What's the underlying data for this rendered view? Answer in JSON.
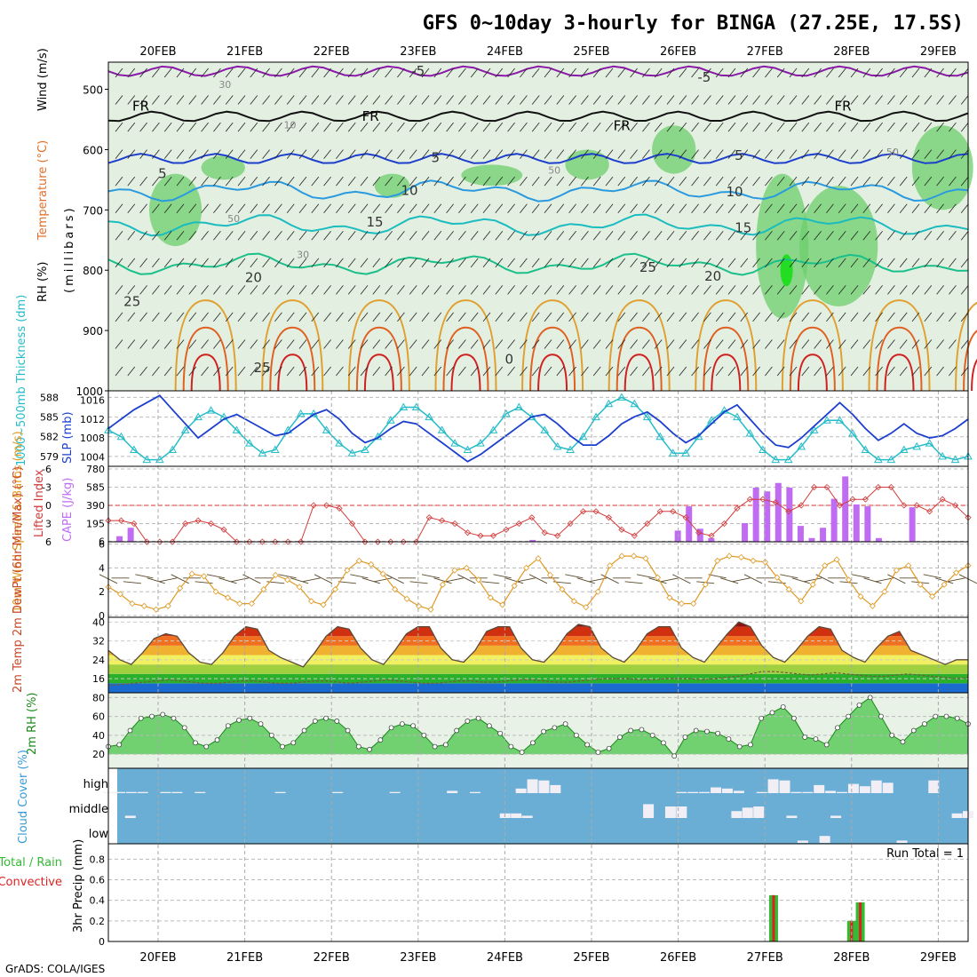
{
  "title": "GFS 0~10day 3-hourly for BINGA (27.25E, 17.5S)",
  "footer": "GrADS: COLA/IGES",
  "dates": [
    "20FEB",
    "21FEB",
    "22FEB",
    "23FEB",
    "24FEB",
    "25FEB",
    "26FEB",
    "27FEB",
    "28FEB",
    "29FEB"
  ],
  "colors": {
    "rh_light": "#e3efe0",
    "rh_mid": "#c2d3c0",
    "rh_green": "#6ccf6c",
    "rh_bright": "#22dd22",
    "cyan_series": "#26bcc8",
    "blue_series": "#1d3fce",
    "lifted": "#d23a3a",
    "cape": "#bf6cf2",
    "wind": "#e09a26",
    "temp_line": "#5a4a3a",
    "rh_line": "#1a8a1a",
    "sky": "#6aaed6",
    "cloud": "#f2eef5",
    "precip_green": "#33bb33",
    "precip_red": "#dd2222"
  },
  "chart_data": [
    {
      "type": "heatmap",
      "panel": "upper-air",
      "ylabel_left_parts": [
        "RH (%)",
        "Temperature (°C)",
        "Wind (m/s)"
      ],
      "ylabel": "(millibars)",
      "yticks": [
        500,
        600,
        700,
        800,
        900,
        1000
      ],
      "ylim": [
        1000,
        455
      ],
      "temperature_contour_labels": [
        "-5",
        "-5",
        "FR",
        "FR",
        "FR",
        "FR",
        "5",
        "5",
        "5",
        "10",
        "10",
        "15",
        "15",
        "20",
        "20",
        "25",
        "25",
        "25",
        "0"
      ],
      "rh_contour_labels": [
        "30",
        "10",
        "50",
        "50",
        "30",
        "50"
      ]
    },
    {
      "type": "line",
      "panel": "thickness-slp",
      "ylabel_left": "1000~500mb Thickness (dm)",
      "ylabel_right": "SLP (mb)",
      "yticks_left": [
        579,
        582,
        585,
        588
      ],
      "yticks_right": [
        1004,
        1008,
        1012,
        1016
      ],
      "series": [
        {
          "name": "Thickness",
          "axis": "left",
          "values": [
            583,
            582,
            580,
            578.5,
            578.5,
            580,
            583,
            585,
            586,
            585,
            583,
            581,
            579.5,
            580,
            583,
            585.5,
            585.5,
            583,
            581,
            579.5,
            580,
            582,
            584.5,
            586.5,
            586.5,
            585,
            583,
            581,
            580,
            581,
            583,
            585.5,
            586.5,
            585,
            583,
            580.5,
            580,
            582,
            585,
            587,
            588,
            587,
            585,
            582,
            579.5,
            579.5,
            582,
            584.5,
            586,
            585,
            582.5,
            580,
            578.5,
            578.5,
            580.5,
            583,
            584.5,
            584.5,
            582.5,
            580,
            578.5,
            578.5,
            580,
            580.5,
            581,
            579,
            578.5,
            579
          ]
        },
        {
          "name": "SLP",
          "axis": "right",
          "values": [
            1010,
            1012,
            1014,
            1015.5,
            1017,
            1014,
            1011,
            1008,
            1010,
            1012,
            1013,
            1011.5,
            1010,
            1008.5,
            1009,
            1011,
            1013,
            1014,
            1012,
            1009,
            1007,
            1008,
            1010,
            1011.5,
            1011,
            1009,
            1007,
            1005,
            1003,
            1004.5,
            1006.5,
            1008.5,
            1010.5,
            1012.5,
            1013,
            1011,
            1008.5,
            1006.5,
            1006.5,
            1008.5,
            1011,
            1012.5,
            1013.5,
            1011.5,
            1009,
            1007,
            1008.5,
            1011,
            1013.5,
            1015,
            1012,
            1009,
            1006.5,
            1006,
            1008,
            1010.5,
            1013,
            1015.5,
            1013,
            1010,
            1007.5,
            1009,
            1011,
            1009,
            1008,
            1008.5,
            1010,
            1012
          ]
        }
      ]
    },
    {
      "type": "bar",
      "panel": "lifted-cape",
      "ylabel_left": "Lifted Index",
      "ylabel_right": "CAPE (J/kg)",
      "yticks_left": [
        6,
        3,
        0,
        -3,
        -6
      ],
      "yticks_right": [
        6,
        195,
        390,
        585,
        780
      ],
      "series": [
        {
          "name": "Lifted Index",
          "values": [
            2.5,
            2.5,
            3,
            6,
            6,
            6,
            3,
            2.5,
            3,
            4,
            6,
            6,
            6,
            6,
            6,
            6,
            0,
            0,
            0.5,
            3,
            6,
            6,
            6,
            6,
            6,
            2,
            2.5,
            3,
            4.5,
            5,
            5,
            4,
            3,
            2,
            4.5,
            5,
            3,
            1,
            1,
            2,
            4,
            5,
            3,
            1,
            1,
            2,
            4.5,
            5,
            3,
            0.5,
            -1,
            -1,
            -0.5,
            1,
            0,
            -3,
            -3,
            0,
            -1,
            -1,
            -3,
            -3,
            0,
            0,
            1,
            -1,
            0,
            2
          ]
        },
        {
          "name": "CAPE",
          "values": [
            0,
            60,
            150,
            0,
            0,
            0,
            0,
            0,
            0,
            0,
            0,
            0,
            0,
            0,
            0,
            0,
            0,
            0,
            0,
            0,
            0,
            0,
            0,
            0,
            0,
            0,
            0,
            0,
            0,
            0,
            0,
            0,
            0,
            0,
            0,
            0,
            0,
            0,
            20,
            0,
            0,
            0,
            0,
            0,
            0,
            0,
            0,
            0,
            0,
            0,
            0,
            120,
            380,
            140,
            40,
            0,
            0,
            200,
            580,
            540,
            630,
            580,
            170,
            40,
            150,
            460,
            700,
            400,
            380,
            40,
            0,
            0,
            370,
            0,
            0,
            0,
            0,
            0
          ]
        }
      ]
    },
    {
      "type": "line",
      "panel": "wind",
      "ylabel": "10m Wind Speed & Barbs (m/s)",
      "yticks": [
        0,
        2,
        4,
        6
      ],
      "values": [
        2.4,
        1.8,
        1.0,
        0.8,
        0.5,
        0.8,
        2.3,
        3.5,
        3.3,
        2.0,
        1.5,
        1.0,
        1.0,
        2.2,
        3.4,
        3.0,
        2.4,
        1.2,
        0.9,
        2.2,
        3.8,
        4.6,
        4.3,
        3.5,
        2.2,
        1.4,
        0.8,
        0.5,
        2.6,
        3.8,
        4.0,
        3.0,
        1.5,
        0.9,
        2.5,
        4.0,
        4.8,
        3.4,
        2.2,
        1.2,
        0.7,
        2.0,
        4.2,
        5.0,
        5.0,
        4.8,
        3.2,
        1.5,
        1.0,
        1.0,
        2.6,
        4.6,
        5.0,
        4.9,
        4.6,
        4.5,
        3.2,
        2.2,
        1.2,
        2.6,
        4.2,
        4.7,
        3.0,
        1.6,
        0.8,
        2.0,
        3.8,
        4.2,
        2.6,
        1.6,
        2.6,
        3.6,
        4.2
      ]
    },
    {
      "type": "area",
      "panel": "temperature",
      "ylabel": "2m Temp 2m DewPt (6hr Min/Max) (°C)",
      "yticks": [
        16,
        24,
        32,
        40
      ],
      "series": [
        {
          "name": "2m Temp",
          "values": [
            28,
            24,
            22,
            27,
            33,
            35,
            34,
            27,
            23,
            22,
            27,
            34,
            38,
            37,
            28,
            25,
            23,
            21,
            27,
            34,
            38,
            37,
            29,
            24,
            22,
            28,
            35,
            38,
            38,
            29,
            24,
            23,
            28,
            36,
            38,
            38,
            29,
            24,
            23,
            28,
            35,
            39,
            38,
            29,
            25,
            23,
            28,
            35,
            38,
            38,
            29,
            25,
            23,
            29,
            35,
            40,
            38,
            30,
            25,
            23,
            28,
            34,
            38,
            37,
            28,
            25,
            23,
            29,
            34,
            36,
            28,
            26,
            24,
            22,
            24,
            24
          ]
        },
        {
          "name": "2m DewPt",
          "values": [
            13,
            13.5,
            14,
            14.5,
            15,
            15.5,
            15,
            14.5,
            14,
            14,
            14.5,
            15,
            15,
            14.5,
            14,
            14,
            14.5,
            15,
            15,
            14.5,
            14,
            14.5,
            15,
            15.5,
            15,
            14.5,
            14,
            14,
            14.5,
            15,
            15,
            14.5,
            14.5,
            15,
            15.5,
            15.5,
            15,
            14.5,
            14.5,
            15,
            15.5,
            16,
            16,
            16,
            15.5,
            15.5,
            16,
            16,
            16,
            15.5,
            16,
            16.5,
            17,
            18,
            19,
            19,
            18.5,
            18,
            17.5,
            18,
            18.5,
            18,
            17.5,
            17,
            17,
            17.5,
            18,
            17.5,
            17,
            16.5,
            16,
            16.5
          ]
        }
      ]
    },
    {
      "type": "area",
      "panel": "relative-humidity",
      "ylabel": "2m RH (%)",
      "yticks": [
        20,
        40,
        60,
        80
      ],
      "values": [
        28,
        30,
        45,
        58,
        60,
        62,
        58,
        48,
        32,
        28,
        35,
        50,
        56,
        58,
        52,
        40,
        28,
        32,
        45,
        55,
        58,
        55,
        45,
        28,
        25,
        35,
        48,
        52,
        50,
        40,
        28,
        30,
        45,
        55,
        58,
        50,
        42,
        28,
        22,
        32,
        44,
        48,
        52,
        40,
        30,
        22,
        26,
        38,
        45,
        46,
        40,
        32,
        18,
        38,
        45,
        44,
        42,
        36,
        28,
        30,
        58,
        64,
        70,
        58,
        38,
        36,
        30,
        48,
        60,
        72,
        80,
        60,
        40,
        33,
        45,
        52,
        60,
        60,
        58,
        52
      ]
    },
    {
      "type": "bar",
      "panel": "cloud-cover",
      "ylabel": "Cloud Cover (%)",
      "rows": [
        "high",
        "middle",
        "low"
      ],
      "series": [
        {
          "name": "high",
          "values": [
            5,
            5,
            5,
            5,
            0,
            5,
            5,
            0,
            5,
            0,
            0,
            0,
            0,
            0,
            0,
            5,
            0,
            0,
            0,
            0,
            5,
            0,
            0,
            0,
            0,
            5,
            0,
            0,
            0,
            0,
            10,
            0,
            5,
            0,
            0,
            0,
            20,
            60,
            55,
            35,
            0,
            0,
            0,
            0,
            0,
            0,
            0,
            0,
            0,
            0,
            5,
            5,
            5,
            25,
            20,
            10,
            0,
            5,
            60,
            55,
            5,
            5,
            35,
            10,
            5,
            40,
            30,
            55,
            45,
            0,
            0,
            0,
            55,
            0,
            0,
            0
          ]
        },
        {
          "name": "middle",
          "values": [
            0,
            0,
            10,
            0,
            0,
            0,
            0,
            0,
            0,
            0,
            0,
            0,
            0,
            0,
            0,
            0,
            0,
            0,
            0,
            0,
            0,
            0,
            0,
            0,
            0,
            0,
            0,
            0,
            0,
            0,
            0,
            0,
            0,
            0,
            0,
            0,
            20,
            20,
            10,
            0,
            0,
            0,
            0,
            0,
            0,
            0,
            0,
            0,
            0,
            60,
            0,
            50,
            50,
            0,
            0,
            0,
            0,
            30,
            45,
            50,
            0,
            0,
            10,
            0,
            0,
            0,
            10,
            0,
            0,
            0,
            0,
            0,
            0,
            0,
            0,
            0,
            0,
            20,
            30
          ]
        },
        {
          "name": "low",
          "values": [
            0,
            0,
            0,
            0,
            0,
            0,
            0,
            0,
            0,
            0,
            0,
            0,
            0,
            0,
            0,
            0,
            0,
            0,
            0,
            0,
            0,
            0,
            0,
            0,
            0,
            0,
            0,
            0,
            0,
            0,
            0,
            0,
            0,
            0,
            0,
            0,
            0,
            0,
            0,
            0,
            0,
            0,
            0,
            0,
            0,
            0,
            0,
            0,
            0,
            0,
            0,
            0,
            0,
            0,
            0,
            0,
            0,
            0,
            0,
            0,
            0,
            0,
            0,
            10,
            0,
            30,
            0,
            0,
            0,
            0,
            0,
            0,
            10,
            0,
            0,
            0,
            0,
            0,
            0
          ]
        }
      ]
    },
    {
      "type": "bar",
      "panel": "precip",
      "ylabel": "3hr Precip (mm)",
      "ylabel_left": [
        "Total / Rain",
        "Convective"
      ],
      "annotation": "Run Total = 1",
      "yticks": [
        0,
        0.2,
        0.4,
        0.6,
        0.8
      ],
      "series": [
        {
          "name": "Total",
          "bars": [
            {
              "day": 7.1,
              "value": 0.45
            },
            {
              "day": 8.0,
              "value": 0.2
            },
            {
              "day": 8.1,
              "value": 0.38
            }
          ]
        },
        {
          "name": "Convective",
          "bars": [
            {
              "day": 7.1,
              "value": 0.45
            },
            {
              "day": 8.0,
              "value": 0.2
            },
            {
              "day": 8.1,
              "value": 0.38
            }
          ]
        }
      ]
    }
  ]
}
